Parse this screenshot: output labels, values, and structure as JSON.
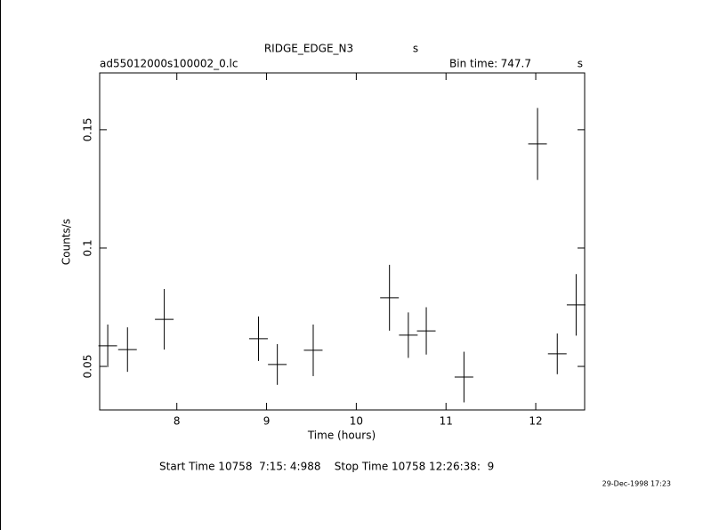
{
  "chart_data": {
    "type": "errorbar",
    "title": "RIDGE_EDGE_N3",
    "title_unit": "s",
    "file_name": "ad55012000s100002_0.lc",
    "bin_time_label": "Bin time:",
    "bin_time": 747.7,
    "bin_time_unit": "s",
    "x_label": "Time (hours)",
    "y_label": "Counts/s",
    "footer": "Start Time 10758  7:15: 4:988    Stop Time 10758 12:26:38:  9",
    "date_stamp": "29-Dec-1998 17:23",
    "x": [
      7.23,
      7.45,
      7.86,
      8.91,
      9.12,
      9.52,
      10.37,
      10.58,
      10.78,
      11.2,
      12.02,
      12.24,
      12.45
    ],
    "values": [
      0.0587,
      0.0571,
      0.0699,
      0.0617,
      0.0508,
      0.0568,
      0.079,
      0.0632,
      0.065,
      0.0455,
      0.144,
      0.0553,
      0.076
    ],
    "xerr": [
      0.104,
      0.104,
      0.104,
      0.104,
      0.104,
      0.104,
      0.104,
      0.104,
      0.104,
      0.104,
      0.104,
      0.104,
      0.104
    ],
    "yerr": [
      0.009,
      0.0094,
      0.0128,
      0.0094,
      0.0086,
      0.0109,
      0.0139,
      0.0096,
      0.01,
      0.0107,
      0.0152,
      0.0086,
      0.013
    ],
    "color": "#000000",
    "xlim": [
      7.14,
      12.545
    ],
    "ylim": [
      0.0316,
      0.174
    ],
    "xticks": [
      8,
      9,
      10,
      11,
      12
    ],
    "yticks": [
      0.05,
      0.1,
      0.15
    ]
  }
}
